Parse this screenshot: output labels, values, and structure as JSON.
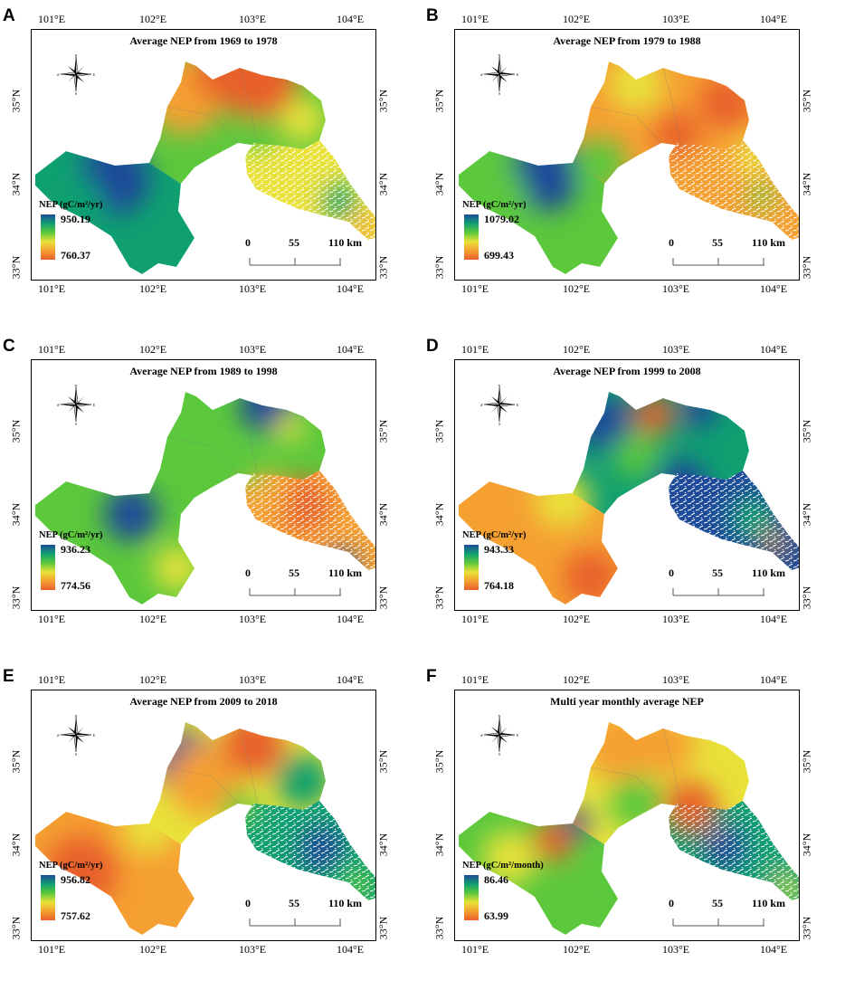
{
  "panels": [
    {
      "letter": "A",
      "title": "Average NEP from 1969 to 1978",
      "legend_title": "NEP (gC/m²/yr)",
      "legend_max": "950.19",
      "legend_min": "760.37",
      "scheme": "A"
    },
    {
      "letter": "B",
      "title": "Average NEP from 1979 to 1988",
      "legend_title": "NEP (gC/m²/yr)",
      "legend_max": "1079.02",
      "legend_min": "699.43",
      "scheme": "B"
    },
    {
      "letter": "C",
      "title": "Average NEP from 1989 to 1998",
      "legend_title": "NEP (gC/m²/yr)",
      "legend_max": "936.23",
      "legend_min": "774.56",
      "scheme": "C"
    },
    {
      "letter": "D",
      "title": "Average NEP from 1999 to 2008",
      "legend_title": "NEP (gC/m²/yr)",
      "legend_max": "943.33",
      "legend_min": "764.18",
      "scheme": "D"
    },
    {
      "letter": "E",
      "title": "Average NEP from 2009 to 2018",
      "legend_title": "NEP (gC/m²/yr)",
      "legend_max": "956.82",
      "legend_min": "757.62",
      "scheme": "E"
    },
    {
      "letter": "F",
      "title": "Multi year monthly average NEP",
      "legend_title": "NEP (gC/m²/month)",
      "legend_max": "86.46",
      "legend_min": "63.99",
      "scheme": "F"
    }
  ],
  "lon_labels": [
    "101°E",
    "102°E",
    "103°E",
    "104°E"
  ],
  "lat_labels": [
    "35°N",
    "34°N",
    "33°N"
  ],
  "scale_labels": [
    "0",
    "55",
    "110 km"
  ],
  "compass_labels": {
    "n": "N",
    "s": "S",
    "e": "E",
    "w": "W"
  },
  "colors": {
    "dark_blue": "#1e4a9a",
    "teal": "#10a070",
    "green": "#5cc83c",
    "yellow": "#e8e23a",
    "orange": "#f5a032",
    "red": "#e8602a"
  }
}
